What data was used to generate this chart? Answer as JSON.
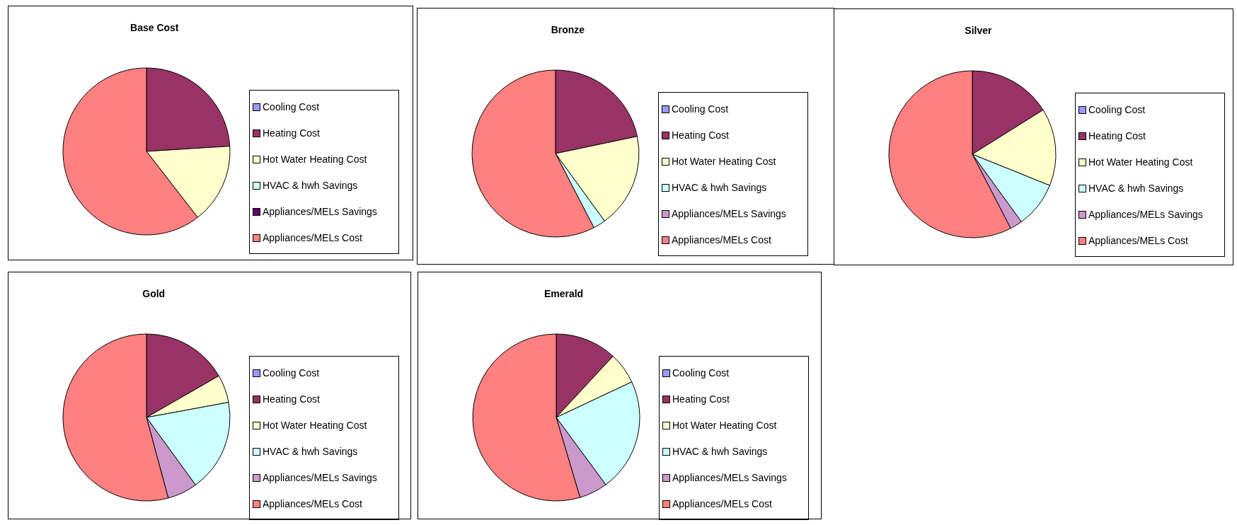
{
  "chart_data": [
    {
      "type": "pie",
      "title": "Base Cost",
      "legend": "right",
      "categories": [
        "Cooling Cost",
        "Heating Cost",
        "Hot Water Heating Cost",
        "HVAC & hwh Savings",
        "Appliances/MELs Savings",
        "Appliances/MELs Cost"
      ],
      "values": [
        0,
        24,
        15.5,
        0,
        0,
        60.5
      ],
      "colors": [
        "#9999ff",
        "#993366",
        "#ffffcc",
        "#ccffff",
        "#660066",
        "#ff8080"
      ]
    },
    {
      "type": "pie",
      "title": "Bronze",
      "legend": "right",
      "categories": [
        "Cooling Cost",
        "Heating Cost",
        "Hot Water Heating Cost",
        "HVAC & hwh Savings",
        "Appliances/MELs Savings",
        "Appliances/MELs Cost"
      ],
      "values": [
        0,
        21.7,
        18.3,
        2.4,
        0,
        57.6
      ],
      "colors": [
        "#9999ff",
        "#993366",
        "#ffffcc",
        "#ccffff",
        "#cc99cc",
        "#ff8080"
      ]
    },
    {
      "type": "pie",
      "title": "Silver",
      "legend": "right",
      "categories": [
        "Cooling Cost",
        "Heating Cost",
        "Hot Water Heating Cost",
        "HVAC & hwh Savings",
        "Appliances/MELs Savings",
        "Appliances/MELs Cost"
      ],
      "values": [
        0,
        16.1,
        15,
        8.9,
        2.4,
        57.6
      ],
      "colors": [
        "#9999ff",
        "#993366",
        "#ffffcc",
        "#ccffff",
        "#cc99cc",
        "#ff8080"
      ]
    },
    {
      "type": "pie",
      "title": "Gold",
      "legend": "right",
      "categories": [
        "Cooling Cost",
        "Heating Cost",
        "Hot Water Heating Cost",
        "HVAC & hwh Savings",
        "Appliances/MELs Savings",
        "Appliances/MELs Cost"
      ],
      "values": [
        0,
        16.7,
        5.4,
        17.9,
        5.8,
        54.2
      ],
      "colors": [
        "#9999ff",
        "#993366",
        "#ffffcc",
        "#ccffff",
        "#cc99cc",
        "#ff8080"
      ]
    },
    {
      "type": "pie",
      "title": "Emerald",
      "legend": "right",
      "categories": [
        "Cooling Cost",
        "Heating Cost",
        "Hot Water Heating Cost",
        "HVAC & hwh Savings",
        "Appliances/MELs Savings",
        "Appliances/MELs Cost"
      ],
      "values": [
        0,
        11.9,
        6.1,
        21.9,
        5.5,
        54.6
      ],
      "colors": [
        "#9999ff",
        "#993366",
        "#ffffcc",
        "#ccffff",
        "#cc99cc",
        "#ff8080"
      ]
    }
  ]
}
